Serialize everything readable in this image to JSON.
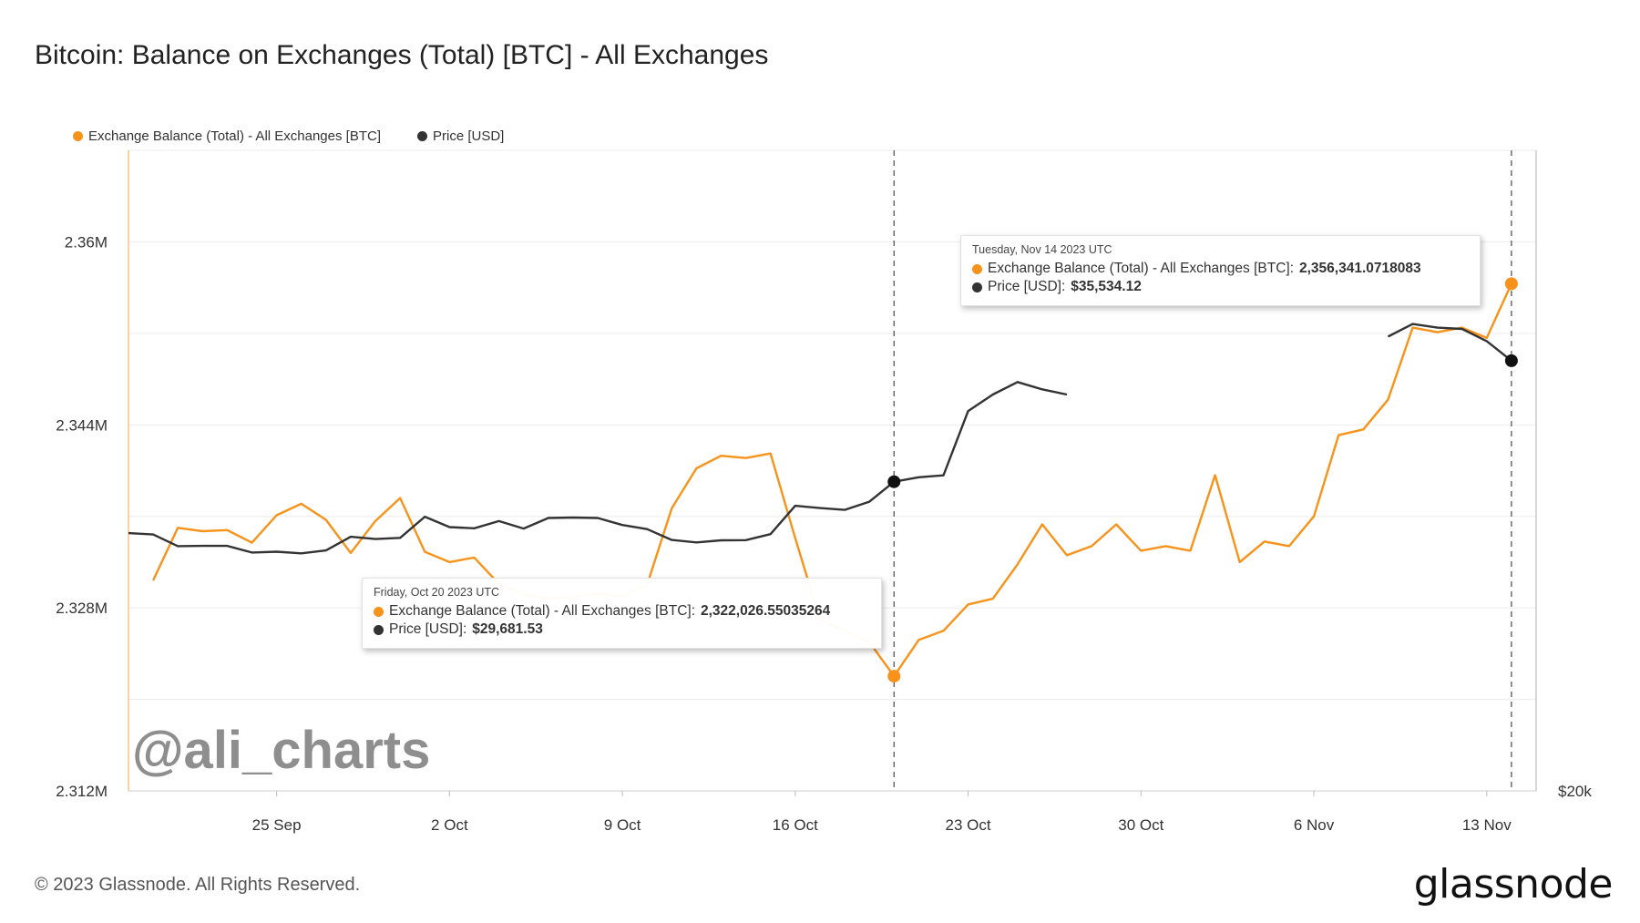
{
  "title": "Bitcoin: Balance on Exchanges (Total) [BTC] - All Exchanges",
  "legend": [
    {
      "label": "Exchange Balance (Total) - All Exchanges [BTC]",
      "color": "#f7931a"
    },
    {
      "label": "Price [USD]",
      "color": "#333333"
    }
  ],
  "watermark": "@ali_charts",
  "footer": "© 2023 Glassnode. All Rights Reserved.",
  "brand": "glassnode",
  "tooltips": [
    {
      "date": "Friday, Oct 20 2023 UTC",
      "balance_label": "Exchange Balance (Total) - All Exchanges [BTC]:",
      "balance_value": "2,322,026.55035264",
      "price_label": "Price [USD]:",
      "price_value": "$29,681.53"
    },
    {
      "date": "Tuesday, Nov 14 2023 UTC",
      "balance_label": "Exchange Balance (Total) - All Exchanges [BTC]:",
      "balance_value": "2,356,341.0718083",
      "price_label": "Price [USD]:",
      "price_value": "$35,534.12"
    }
  ],
  "chart_data": {
    "type": "line",
    "x_start": "2023-09-19",
    "x_end": "2023-11-15",
    "x_ticks": [
      "25 Sep",
      "2 Oct",
      "9 Oct",
      "16 Oct",
      "23 Oct",
      "30 Oct",
      "6 Nov",
      "13 Nov"
    ],
    "y_ticks": [
      "2.312M",
      "2.328M",
      "2.344M",
      "2.36M"
    ],
    "y_right_ticks": [
      "$20k"
    ],
    "ylim": [
      2312000,
      2368000
    ],
    "grid": true,
    "series": [
      {
        "name": "Exchange Balance (Total) - All Exchanges [BTC]",
        "color": "#f7931a",
        "points": [
          [
            "2023-09-20",
            2330.4
          ],
          [
            "2023-09-21",
            2335.0
          ],
          [
            "2023-09-22",
            2334.7
          ],
          [
            "2023-09-23",
            2334.8
          ],
          [
            "2023-09-24",
            2333.7
          ],
          [
            "2023-09-25",
            2336.1
          ],
          [
            "2023-09-26",
            2337.1
          ],
          [
            "2023-09-27",
            2335.7
          ],
          [
            "2023-09-28",
            2332.8
          ],
          [
            "2023-09-29",
            2335.6
          ],
          [
            "2023-09-30",
            2337.6
          ],
          [
            "2023-10-01",
            2332.9
          ],
          [
            "2023-10-02",
            2332.0
          ],
          [
            "2023-10-03",
            2332.4
          ],
          [
            "2023-10-04",
            2330.1
          ],
          [
            "2023-10-05",
            2329.2
          ],
          [
            "2023-10-06",
            2328.8
          ],
          [
            "2023-10-07",
            2329.0
          ],
          [
            "2023-10-08",
            2329.2
          ],
          [
            "2023-10-09",
            2329.0
          ],
          [
            "2023-10-10",
            2330.0
          ],
          [
            "2023-10-11",
            2336.7
          ],
          [
            "2023-10-12",
            2340.2
          ],
          [
            "2023-10-13",
            2341.3
          ],
          [
            "2023-10-14",
            2341.1
          ],
          [
            "2023-10-15",
            2341.5
          ],
          [
            "2023-10-16",
            2334.1
          ],
          [
            "2023-10-17",
            2327.0
          ],
          [
            "2023-10-18",
            2326.0
          ],
          [
            "2023-10-19",
            2325.0
          ],
          [
            "2023-10-20",
            2322.03
          ],
          [
            "2023-10-21",
            2325.2
          ],
          [
            "2023-10-22",
            2326.0
          ],
          [
            "2023-10-23",
            2328.3
          ],
          [
            "2023-10-24",
            2328.8
          ],
          [
            "2023-10-25",
            2331.8
          ],
          [
            "2023-10-26",
            2335.3
          ],
          [
            "2023-10-27",
            2332.6
          ],
          [
            "2023-10-28",
            2333.4
          ],
          [
            "2023-10-29",
            2335.3
          ],
          [
            "2023-10-30",
            2333.0
          ],
          [
            "2023-10-31",
            2333.4
          ],
          [
            "2023-11-01",
            2333.0
          ],
          [
            "2023-11-02",
            2339.6
          ],
          [
            "2023-11-03",
            2332.0
          ],
          [
            "2023-11-04",
            2333.8
          ],
          [
            "2023-11-05",
            2333.4
          ],
          [
            "2023-11-06",
            2336.0
          ],
          [
            "2023-11-07",
            2343.1
          ],
          [
            "2023-11-08",
            2343.6
          ],
          [
            "2023-11-09",
            2346.2
          ],
          [
            "2023-11-10",
            2352.5
          ],
          [
            "2023-11-11",
            2352.1
          ],
          [
            "2023-11-12",
            2352.5
          ],
          [
            "2023-11-13",
            2351.6
          ],
          [
            "2023-11-14",
            2356.34
          ]
        ]
      },
      {
        "name": "Price [USD]",
        "color": "#333333",
        "points": [
          [
            "2023-09-19",
            27200
          ],
          [
            "2023-09-20",
            27130
          ],
          [
            "2023-09-21",
            26570
          ],
          [
            "2023-09-22",
            26580
          ],
          [
            "2023-09-23",
            26580
          ],
          [
            "2023-09-24",
            26260
          ],
          [
            "2023-09-25",
            26300
          ],
          [
            "2023-09-26",
            26220
          ],
          [
            "2023-09-27",
            26360
          ],
          [
            "2023-09-28",
            27020
          ],
          [
            "2023-09-29",
            26910
          ],
          [
            "2023-09-30",
            26970
          ],
          [
            "2023-10-01",
            27990
          ],
          [
            "2023-10-02",
            27490
          ],
          [
            "2023-10-03",
            27430
          ],
          [
            "2023-10-04",
            27780
          ],
          [
            "2023-10-05",
            27420
          ],
          [
            "2023-10-06",
            27930
          ],
          [
            "2023-10-07",
            27950
          ],
          [
            "2023-10-08",
            27930
          ],
          [
            "2023-10-09",
            27590
          ],
          [
            "2023-10-10",
            27390
          ],
          [
            "2023-10-11",
            26870
          ],
          [
            "2023-10-12",
            26750
          ],
          [
            "2023-10-13",
            26850
          ],
          [
            "2023-10-14",
            26860
          ],
          [
            "2023-10-15",
            27150
          ],
          [
            "2023-10-16",
            28520
          ],
          [
            "2023-10-17",
            28410
          ],
          [
            "2023-10-18",
            28320
          ],
          [
            "2023-10-19",
            28720
          ],
          [
            "2023-10-20",
            29681.53
          ],
          [
            "2023-10-21",
            29900
          ],
          [
            "2023-10-22",
            29990
          ],
          [
            "2023-10-23",
            33100
          ],
          [
            "2023-10-24",
            33900
          ],
          [
            "2023-10-25",
            34500
          ],
          [
            "2023-10-26",
            34150
          ],
          [
            "2023-10-27",
            33900
          ],
          [
            "2023-11-09",
            36700
          ],
          [
            "2023-11-10",
            37310
          ],
          [
            "2023-11-11",
            37130
          ],
          [
            "2023-11-12",
            37070
          ],
          [
            "2023-11-13",
            36480
          ],
          [
            "2023-11-14",
            35534.12
          ]
        ]
      }
    ],
    "highlighted": [
      "2023-10-20",
      "2023-11-14"
    ]
  }
}
